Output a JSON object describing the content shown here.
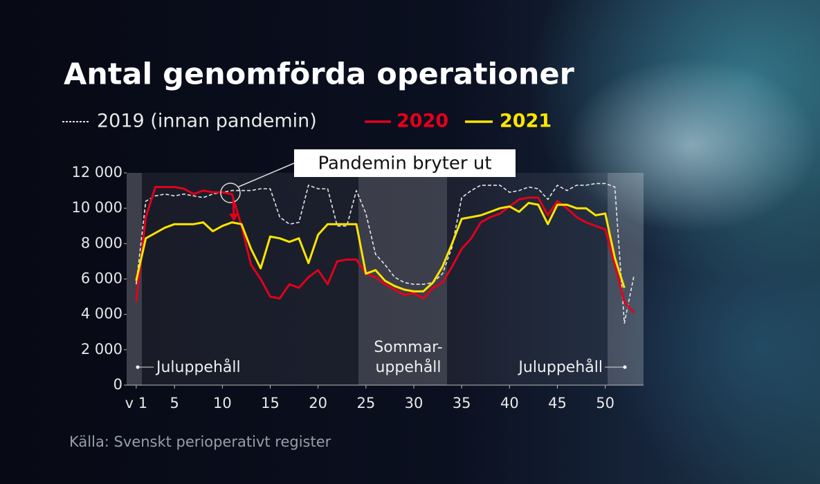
{
  "chart_data": {
    "type": "line",
    "title": "Antal genomförda operationer",
    "source": "Källa: Svenskt perioperativt register",
    "annotations": {
      "event": "Pandemin bryter ut",
      "christmas_left": "Juluppehåll",
      "summer": [
        "Sommar-",
        "uppehåll"
      ],
      "christmas_right": "Juluppehåll"
    },
    "x": [
      1,
      2,
      3,
      4,
      5,
      6,
      7,
      8,
      9,
      10,
      11,
      12,
      13,
      14,
      15,
      16,
      17,
      18,
      19,
      20,
      21,
      22,
      23,
      24,
      25,
      26,
      27,
      28,
      29,
      30,
      31,
      32,
      33,
      34,
      35,
      36,
      37,
      38,
      39,
      40,
      41,
      42,
      43,
      44,
      45,
      46,
      47,
      48,
      49,
      50,
      51,
      52,
      53
    ],
    "xlim": [
      0,
      54
    ],
    "xticks": [
      {
        "value": 1,
        "label": "v 1"
      },
      5,
      10,
      15,
      20,
      25,
      30,
      35,
      40,
      45,
      50
    ],
    "ylim": [
      0,
      12000
    ],
    "yticks": [
      0,
      {
        "value": 2000,
        "label": "2 000"
      },
      {
        "value": 4000,
        "label": "4 000"
      },
      {
        "value": 6000,
        "label": "6 000"
      },
      {
        "value": 8000,
        "label": "8 000"
      },
      {
        "value": 10000,
        "label": "10 000"
      },
      {
        "value": 12000,
        "label": "12 000"
      }
    ],
    "series": [
      {
        "name": "2019 (innan pandemin)",
        "color": "#e8e8e8",
        "dashed": true,
        "values": [
          5700,
          10400,
          10700,
          10800,
          10700,
          10800,
          10700,
          10600,
          10800,
          10900,
          11000,
          11000,
          11000,
          11100,
          11100,
          9500,
          9100,
          9200,
          11300,
          11100,
          11100,
          9000,
          9000,
          11000,
          9700,
          7400,
          6800,
          6100,
          5800,
          5700,
          5700,
          5800,
          6300,
          7800,
          10600,
          11000,
          11300,
          11300,
          11300,
          10900,
          11000,
          11200,
          11100,
          10500,
          11300,
          11000,
          11300,
          11300,
          11400,
          11400,
          11200,
          3500,
          6200
        ]
      },
      {
        "name": "2020",
        "color": "#e3001b",
        "values": [
          4700,
          9500,
          11200,
          11200,
          11200,
          11100,
          10800,
          11000,
          10900,
          10900,
          10800,
          9000,
          6800,
          6000,
          5000,
          4900,
          5700,
          5500,
          6100,
          6500,
          5700,
          7000,
          7100,
          7100,
          6300,
          6100,
          5700,
          5400,
          5100,
          5200,
          4900,
          5500,
          5800,
          6700,
          7700,
          8300,
          9200,
          9500,
          9700,
          10100,
          10500,
          10600,
          10600,
          9600,
          10400,
          10000,
          9500,
          9200,
          9000,
          8800,
          6800,
          4700,
          4100
        ]
      },
      {
        "name": "2021",
        "color": "#ffe500",
        "values": [
          5900,
          8300,
          8600,
          8900,
          9100,
          9100,
          9100,
          9200,
          8700,
          9000,
          9200,
          9100,
          7700,
          6600,
          8400,
          8300,
          8100,
          8300,
          6900,
          8500,
          9100,
          9100,
          9100,
          9100,
          6300,
          6500,
          5900,
          5600,
          5400,
          5300,
          5300,
          5800,
          6700,
          8000,
          9400,
          9500,
          9600,
          9800,
          10000,
          10100,
          9800,
          10300,
          10200,
          9100,
          10200,
          10200,
          10000,
          10000,
          9600,
          9700,
          7200,
          5500,
          null
        ]
      }
    ]
  }
}
